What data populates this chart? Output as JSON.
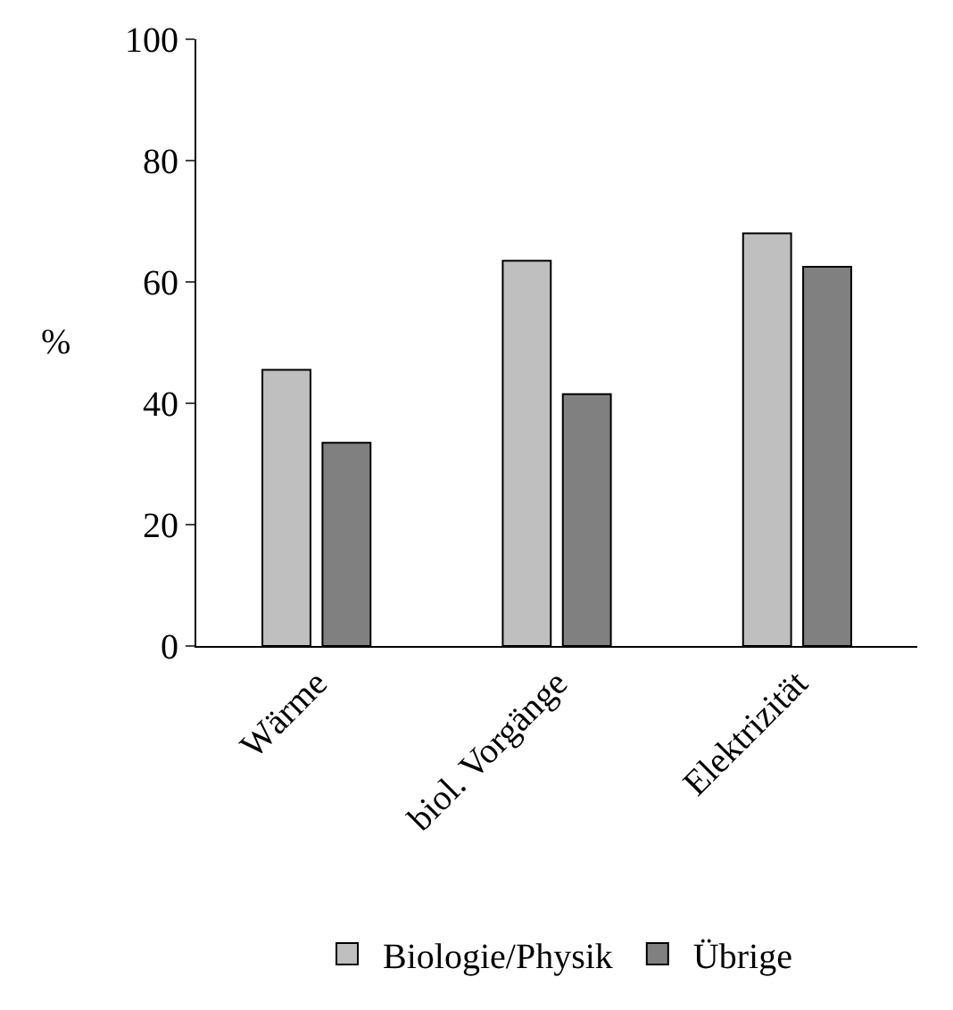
{
  "chart_data": {
    "type": "bar",
    "ylabel": "%",
    "categories": [
      "Wärme",
      "biol. Vorgänge",
      "Elektrizität"
    ],
    "series": [
      {
        "name": "Biologie/Physik",
        "color": "#bfbfbf",
        "values": [
          45.5,
          63.5,
          68
        ]
      },
      {
        "name": "Übrige",
        "color": "#808080",
        "values": [
          33.5,
          41.5,
          62.5
        ]
      }
    ],
    "ylim": [
      0,
      100
    ],
    "yticks": [
      0,
      20,
      40,
      60,
      80,
      100
    ],
    "legend": "bottom"
  }
}
